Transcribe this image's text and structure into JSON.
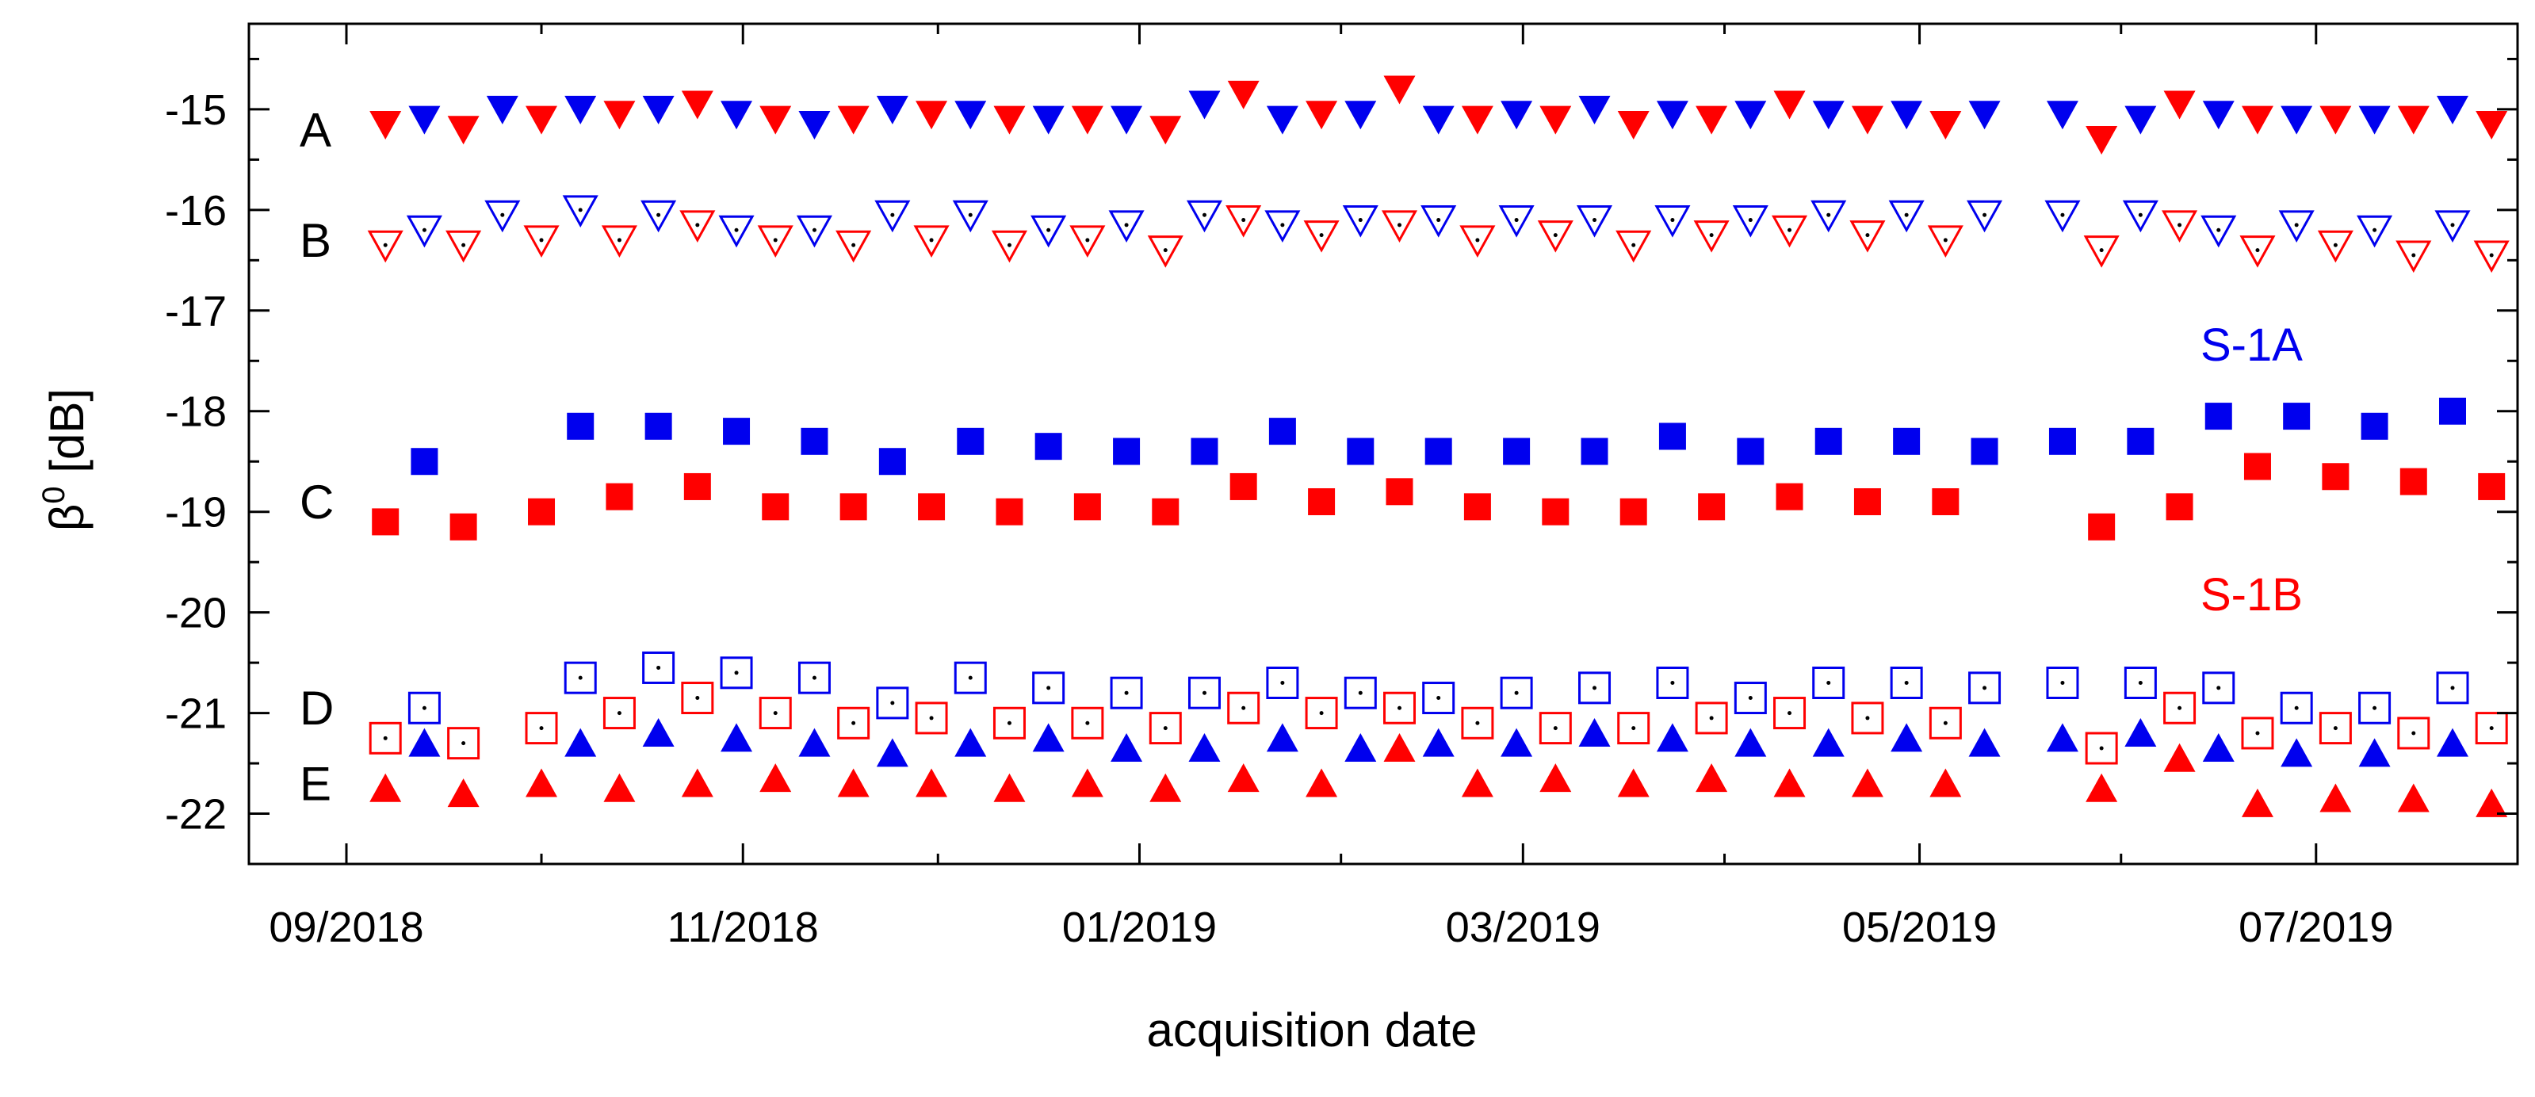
{
  "chart_data": {
    "type": "scatter",
    "title": "",
    "xlabel": "acquisition date",
    "ylabel": "β",
    "ylabel_sup": "0",
    "ylabel_unit": " [dB]",
    "ylim": [
      -22.5,
      -14.15
    ],
    "yticks": [
      -22,
      -21,
      -20,
      -19,
      -18,
      -17,
      -16,
      -15
    ],
    "ytick_labels": [
      "-22",
      "-21",
      "-20",
      "-19",
      "-18",
      "-17",
      "-16",
      "-15"
    ],
    "xlim_day": [
      -15,
      334
    ],
    "xtick_labels": [
      "09/2018",
      "11/2018",
      "01/2019",
      "03/2019",
      "05/2019",
      "07/2019"
    ],
    "xtick_days": [
      0,
      61,
      122,
      181,
      242,
      303
    ],
    "minor_tick_days": [
      30,
      91,
      153,
      212,
      273,
      334
    ],
    "grid": false,
    "legend": [
      {
        "label": "S-1A",
        "color": "#0000ee"
      },
      {
        "label": "S-1B",
        "color": "#ff0000"
      }
    ],
    "colors": {
      "S1A": "#0000ee",
      "S1B": "#ff0000"
    },
    "series_labels": [
      {
        "label": "A",
        "y": -15.2
      },
      {
        "label": "B",
        "y": -16.3
      },
      {
        "label": "C",
        "y": -18.9
      },
      {
        "label": "D",
        "y": -20.95
      },
      {
        "label": "E",
        "y": -21.7
      }
    ],
    "series": [
      {
        "name": "A S-1A",
        "group": "A",
        "satellite": "S-1A",
        "marker": "triangle-down-filled",
        "x": [
          12,
          24,
          36,
          48,
          60,
          72,
          84,
          96,
          108,
          120,
          132,
          144,
          156,
          168,
          180,
          192,
          204,
          216,
          228,
          240,
          252,
          264,
          276,
          288,
          300,
          312,
          324
        ],
        "y": [
          -15.1,
          -15.0,
          -15.0,
          -15.0,
          -15.05,
          -15.15,
          -15.0,
          -15.05,
          -15.1,
          -15.1,
          -14.95,
          -15.1,
          -15.05,
          -15.1,
          -15.05,
          -15.0,
          -15.05,
          -15.05,
          -15.05,
          -15.05,
          -15.05,
          -15.05,
          -15.1,
          -15.05,
          -15.1,
          -15.1,
          -15.0
        ]
      },
      {
        "name": "A S-1B",
        "group": "A",
        "satellite": "S-1B",
        "marker": "triangle-down-filled",
        "x": [
          6,
          18,
          30,
          42,
          54,
          66,
          78,
          90,
          102,
          114,
          126,
          138,
          150,
          162,
          174,
          186,
          198,
          210,
          222,
          234,
          246,
          270,
          282,
          294,
          306,
          318,
          330
        ],
        "y": [
          -15.15,
          -15.2,
          -15.1,
          -15.05,
          -14.95,
          -15.1,
          -15.1,
          -15.05,
          -15.1,
          -15.1,
          -15.2,
          -14.85,
          -15.05,
          -14.8,
          -15.1,
          -15.1,
          -15.15,
          -15.1,
          -14.95,
          -15.1,
          -15.15,
          -15.3,
          -14.95,
          -15.1,
          -15.1,
          -15.1,
          -15.15
        ]
      },
      {
        "name": "B S-1A",
        "group": "B",
        "satellite": "S-1A",
        "marker": "triangle-down-open-dot",
        "x": [
          12,
          24,
          36,
          48,
          60,
          72,
          84,
          96,
          108,
          120,
          132,
          144,
          156,
          168,
          180,
          192,
          204,
          216,
          228,
          240,
          252,
          264,
          276,
          288,
          300,
          312,
          324
        ],
        "y": [
          -16.2,
          -16.05,
          -16.0,
          -16.05,
          -16.2,
          -16.2,
          -16.05,
          -16.05,
          -16.2,
          -16.15,
          -16.05,
          -16.15,
          -16.1,
          -16.1,
          -16.1,
          -16.1,
          -16.1,
          -16.1,
          -16.05,
          -16.05,
          -16.05,
          -16.05,
          -16.05,
          -16.2,
          -16.15,
          -16.2,
          -16.15
        ]
      },
      {
        "name": "B S-1B",
        "group": "B",
        "satellite": "S-1B",
        "marker": "triangle-down-open-dot",
        "x": [
          6,
          18,
          30,
          42,
          54,
          66,
          78,
          90,
          102,
          114,
          126,
          138,
          150,
          162,
          174,
          186,
          198,
          210,
          222,
          234,
          246,
          270,
          282,
          294,
          306,
          318,
          330
        ],
        "y": [
          -16.35,
          -16.35,
          -16.3,
          -16.3,
          -16.15,
          -16.3,
          -16.35,
          -16.3,
          -16.35,
          -16.3,
          -16.4,
          -16.1,
          -16.25,
          -16.15,
          -16.3,
          -16.25,
          -16.35,
          -16.25,
          -16.2,
          -16.25,
          -16.3,
          -16.4,
          -16.15,
          -16.4,
          -16.35,
          -16.45,
          -16.45
        ]
      },
      {
        "name": "C S-1A",
        "group": "C",
        "satellite": "S-1A",
        "marker": "square-filled",
        "x": [
          12,
          36,
          48,
          60,
          72,
          84,
          96,
          108,
          120,
          132,
          144,
          156,
          168,
          180,
          192,
          204,
          216,
          228,
          240,
          252,
          264,
          276,
          288,
          300,
          312,
          324
        ],
        "y": [
          -18.5,
          -18.15,
          -18.15,
          -18.2,
          -18.3,
          -18.5,
          -18.3,
          -18.35,
          -18.4,
          -18.4,
          -18.2,
          -18.4,
          -18.4,
          -18.4,
          -18.4,
          -18.25,
          -18.4,
          -18.3,
          -18.3,
          -18.4,
          -18.3,
          -18.3,
          -18.05,
          -18.05,
          -18.15,
          -18.0
        ]
      },
      {
        "name": "C S-1B",
        "group": "C",
        "satellite": "S-1B",
        "marker": "square-filled",
        "x": [
          6,
          18,
          30,
          42,
          54,
          66,
          78,
          90,
          102,
          114,
          126,
          138,
          150,
          162,
          174,
          186,
          198,
          210,
          222,
          234,
          246,
          270,
          282,
          294,
          306,
          318,
          330
        ],
        "y": [
          -19.1,
          -19.15,
          -19.0,
          -18.85,
          -18.75,
          -18.95,
          -18.95,
          -18.95,
          -19.0,
          -18.95,
          -19.0,
          -18.75,
          -18.9,
          -18.8,
          -18.95,
          -19.0,
          -19.0,
          -18.95,
          -18.85,
          -18.9,
          -18.9,
          -19.15,
          -18.95,
          -18.55,
          -18.65,
          -18.7,
          -18.75
        ]
      },
      {
        "name": "D S-1A",
        "group": "D",
        "satellite": "S-1A",
        "marker": "square-open-dot",
        "x": [
          12,
          36,
          48,
          60,
          72,
          84,
          96,
          108,
          120,
          132,
          144,
          156,
          168,
          180,
          192,
          204,
          216,
          228,
          240,
          252,
          264,
          276,
          288,
          300,
          312,
          324
        ],
        "y": [
          -20.95,
          -20.65,
          -20.55,
          -20.6,
          -20.65,
          -20.9,
          -20.65,
          -20.75,
          -20.8,
          -20.8,
          -20.7,
          -20.8,
          -20.85,
          -20.8,
          -20.75,
          -20.7,
          -20.85,
          -20.7,
          -20.7,
          -20.75,
          -20.7,
          -20.7,
          -20.75,
          -20.95,
          -20.95,
          -20.75
        ]
      },
      {
        "name": "D S-1B",
        "group": "D",
        "satellite": "S-1B",
        "marker": "square-open-dot",
        "x": [
          6,
          18,
          30,
          42,
          54,
          66,
          78,
          90,
          102,
          114,
          126,
          138,
          150,
          162,
          174,
          186,
          198,
          210,
          222,
          234,
          246,
          270,
          282,
          294,
          306,
          318,
          330
        ],
        "y": [
          -21.25,
          -21.3,
          -21.15,
          -21.0,
          -20.85,
          -21.0,
          -21.1,
          -21.05,
          -21.1,
          -21.1,
          -21.15,
          -20.95,
          -21.0,
          -20.95,
          -21.1,
          -21.15,
          -21.15,
          -21.05,
          -21.0,
          -21.05,
          -21.1,
          -21.35,
          -20.95,
          -21.2,
          -21.15,
          -21.2,
          -21.15
        ]
      },
      {
        "name": "E S-1A",
        "group": "E",
        "satellite": "S-1A",
        "marker": "triangle-up-filled",
        "x": [
          12,
          36,
          48,
          60,
          72,
          84,
          96,
          108,
          120,
          132,
          144,
          156,
          168,
          180,
          192,
          204,
          216,
          228,
          240,
          252,
          264,
          276,
          288,
          300,
          312,
          324
        ],
        "y": [
          -21.3,
          -21.3,
          -21.2,
          -21.25,
          -21.3,
          -21.4,
          -21.3,
          -21.25,
          -21.35,
          -21.35,
          -21.25,
          -21.35,
          -21.3,
          -21.3,
          -21.2,
          -21.25,
          -21.3,
          -21.3,
          -21.25,
          -21.3,
          -21.25,
          -21.2,
          -21.35,
          -21.4,
          -21.4,
          -21.3
        ]
      },
      {
        "name": "E S-1B",
        "group": "E",
        "satellite": "S-1B",
        "marker": "triangle-up-filled",
        "x": [
          6,
          18,
          30,
          42,
          54,
          66,
          78,
          90,
          102,
          114,
          126,
          138,
          150,
          162,
          174,
          186,
          198,
          210,
          222,
          234,
          246,
          270,
          282,
          294,
          306,
          318,
          330
        ],
        "y": [
          -21.75,
          -21.8,
          -21.7,
          -21.75,
          -21.7,
          -21.65,
          -21.7,
          -21.7,
          -21.75,
          -21.7,
          -21.75,
          -21.65,
          -21.7,
          -21.35,
          -21.7,
          -21.65,
          -21.7,
          -21.65,
          -21.7,
          -21.7,
          -21.7,
          -21.75,
          -21.45,
          -21.9,
          -21.85,
          -21.85,
          -21.9
        ]
      }
    ]
  }
}
